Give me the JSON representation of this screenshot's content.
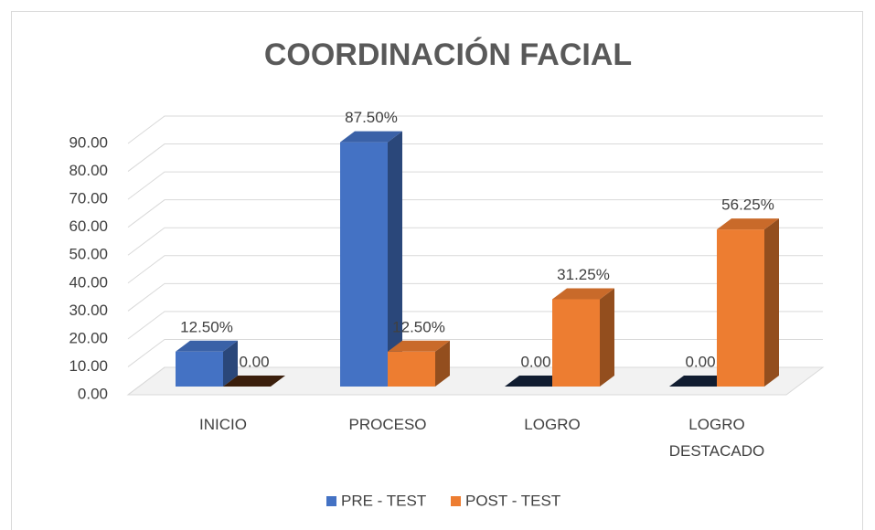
{
  "chart_data": {
    "type": "bar3d",
    "title": "COORDINACIÓN FACIAL",
    "categories": [
      "INICIO",
      "PROCESO",
      "LOGRO",
      "LOGRO DESTACADO"
    ],
    "series": [
      {
        "name": "PRE - TEST",
        "color": "#4472c4",
        "values": [
          12.5,
          87.5,
          0,
          0
        ],
        "value_labels": [
          "12.50%",
          "87.50%",
          "0.00",
          "0.00"
        ]
      },
      {
        "name": "POST - TEST",
        "color": "#ed7d31",
        "values": [
          0,
          12.5,
          31.25,
          56.25
        ],
        "value_labels": [
          "0.00",
          "12.50%",
          "31.25%",
          "56.25%"
        ]
      }
    ],
    "ylim": [
      0,
      90
    ],
    "yticks": [
      {
        "value": 0,
        "label": "0.00"
      },
      {
        "value": 10,
        "label": "10.00"
      },
      {
        "value": 20,
        "label": "20.00"
      },
      {
        "value": 30,
        "label": "30.00"
      },
      {
        "value": 40,
        "label": "40.00"
      },
      {
        "value": 50,
        "label": "50.00"
      },
      {
        "value": 60,
        "label": "60.00"
      },
      {
        "value": 70,
        "label": "70.00"
      },
      {
        "value": 80,
        "label": "80.00"
      },
      {
        "value": 90,
        "label": "90.00"
      }
    ],
    "grid": true,
    "legend": "bottom"
  }
}
